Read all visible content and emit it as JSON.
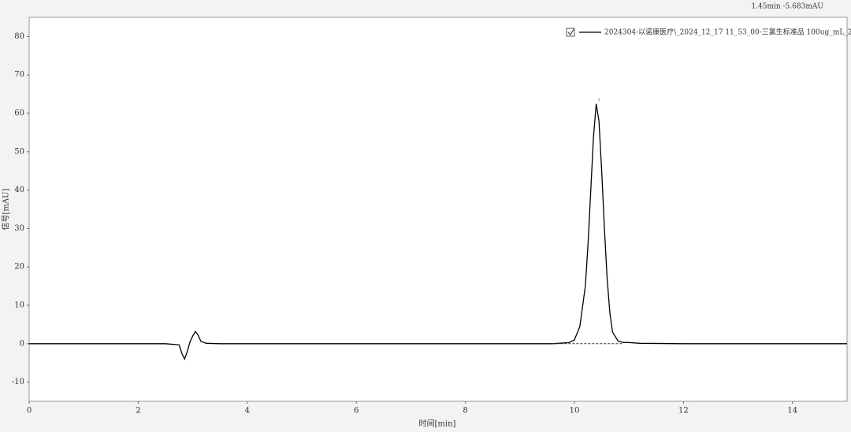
{
  "chart_data": {
    "type": "line",
    "cursor_readout": "1.45min  -5.683mAU",
    "x_label": "时间[min]",
    "y_label": "信号[mAU]",
    "x": [
      0,
      1,
      2,
      2.5,
      2.75,
      2.8,
      2.85,
      2.9,
      2.95,
      3.0,
      3.05,
      3.1,
      3.15,
      3.25,
      3.5,
      5,
      7,
      8,
      9,
      9.6,
      9.9,
      10.0,
      10.1,
      10.2,
      10.25,
      10.3,
      10.35,
      10.4,
      10.45,
      10.5,
      10.55,
      10.6,
      10.65,
      10.7,
      10.8,
      10.9,
      11.0,
      11.2,
      12,
      13,
      14,
      15
    ],
    "series": [
      {
        "name": "2024304-以诺康医疗\\_2024_12_17 11_53_00-三氯生标准品 100ug_mL_2",
        "color": "#000000",
        "values": [
          0,
          0,
          0,
          0,
          -0.3,
          -2.5,
          -4,
          -2,
          0.5,
          2,
          3.2,
          2.2,
          0.6,
          0.1,
          0,
          0,
          0,
          0,
          0,
          0,
          0.3,
          1,
          4.5,
          15,
          26,
          40,
          54,
          62.5,
          58,
          45,
          30,
          17,
          8,
          3,
          0.7,
          0.3,
          0.3,
          0.1,
          0,
          0,
          0,
          0
        ]
      }
    ],
    "baseline": {
      "x": [
        9.6,
        10.9
      ],
      "values": [
        0,
        0
      ]
    },
    "peak_label": {
      "text": "1",
      "x": 10.45,
      "y": 63.5
    },
    "xlim": [
      0,
      15
    ],
    "xticks": [
      0,
      2,
      4,
      6,
      8,
      10,
      12,
      14
    ],
    "ylim": [
      -15,
      85
    ],
    "yticks": [
      -10,
      0,
      10,
      20,
      30,
      40,
      50,
      60,
      70,
      80
    ],
    "grid": false,
    "legend": "top-right"
  }
}
